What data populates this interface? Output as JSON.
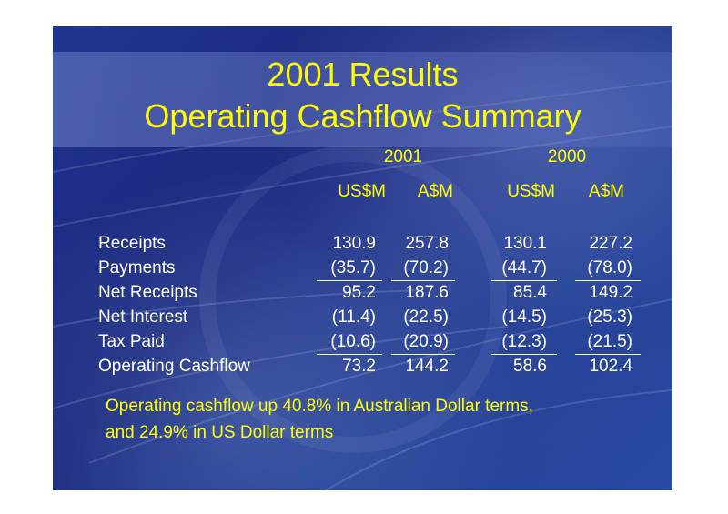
{
  "title": {
    "line1": "2001 Results",
    "line2": "Operating Cashflow Summary"
  },
  "years": [
    "2001",
    "2000"
  ],
  "currencies": [
    "US$M",
    "A$M",
    "US$M",
    "A$M"
  ],
  "rows": [
    {
      "label": "Receipts",
      "values": [
        "130.9",
        "257.8",
        "130.1",
        "227.2"
      ]
    },
    {
      "label": "Payments",
      "values": [
        "(35.7)",
        "(70.2)",
        "(44.7)",
        "(78.0)"
      ]
    },
    {
      "label": "Net Receipts",
      "values": [
        "95.2",
        "187.6",
        "85.4",
        "149.2"
      ]
    },
    {
      "label": "Net Interest",
      "values": [
        "(11.4)",
        "(22.5)",
        "(14.5)",
        "(25.3)"
      ]
    },
    {
      "label": "Tax Paid",
      "values": [
        "(10.6)",
        "(20.9)",
        "(12.3)",
        "(21.5)"
      ]
    },
    {
      "label": "Operating Cashflow",
      "values": [
        "73.2",
        "144.2",
        "58.6",
        "102.4"
      ]
    }
  ],
  "note": {
    "line1": "Operating cashflow up 40.8% in Australian Dollar terms,",
    "line2": "and 24.9% in US Dollar terms"
  },
  "colors": {
    "background": "#1a2a85",
    "accent": "#ffff00",
    "text": "#ffffff"
  }
}
